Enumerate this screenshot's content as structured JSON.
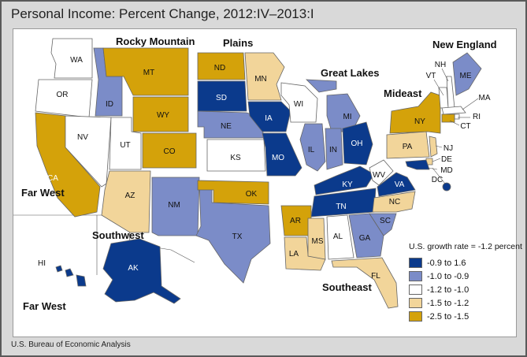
{
  "title": "Personal Income: Percent Change, 2012:IV–2013:I",
  "source": "U.S. Bureau of Economic Analysis",
  "legend": {
    "title": "U.S. growth rate = -1.2 percent",
    "classes": [
      {
        "label": "-0.9 to 1.6",
        "color": "#0b3a8c"
      },
      {
        "label": "-1.0 to -0.9",
        "color": "#7b8cc8"
      },
      {
        "label": "-1.2 to -1.0",
        "color": "#ffffff"
      },
      {
        "label": "-1.5 to -1.2",
        "color": "#f2d59a"
      },
      {
        "label": "-2.5 to -1.5",
        "color": "#d4a20a"
      }
    ]
  },
  "regions": {
    "rocky_mountain": "Rocky Mountain",
    "plains": "Plains",
    "great_lakes": "Great Lakes",
    "new_england": "New England",
    "mideast": "Mideast",
    "far_west": "Far West",
    "far_west_2": "Far West",
    "southwest": "Southwest",
    "southeast": "Southeast"
  },
  "states": {
    "WA": {
      "label": "WA",
      "class": 2
    },
    "OR": {
      "label": "OR",
      "class": 2
    },
    "CA": {
      "label": "CA",
      "class": 4
    },
    "NV": {
      "label": "NV",
      "class": 2
    },
    "ID": {
      "label": "ID",
      "class": 1
    },
    "MT": {
      "label": "MT",
      "class": 4
    },
    "WY": {
      "label": "WY",
      "class": 4
    },
    "UT": {
      "label": "UT",
      "class": 2
    },
    "CO": {
      "label": "CO",
      "class": 4
    },
    "AZ": {
      "label": "AZ",
      "class": 3
    },
    "NM": {
      "label": "NM",
      "class": 1
    },
    "TX": {
      "label": "TX",
      "class": 1
    },
    "OK": {
      "label": "OK",
      "class": 4
    },
    "KS": {
      "label": "KS",
      "class": 2
    },
    "NE": {
      "label": "NE",
      "class": 1
    },
    "SD": {
      "label": "SD",
      "class": 0
    },
    "ND": {
      "label": "ND",
      "class": 4
    },
    "MN": {
      "label": "MN",
      "class": 3
    },
    "IA": {
      "label": "IA",
      "class": 0
    },
    "MO": {
      "label": "MO",
      "class": 0
    },
    "AR": {
      "label": "AR",
      "class": 4
    },
    "LA": {
      "label": "LA",
      "class": 3
    },
    "WI": {
      "label": "WI",
      "class": 2
    },
    "IL": {
      "label": "IL",
      "class": 1
    },
    "MI": {
      "label": "MI",
      "class": 1
    },
    "IN": {
      "label": "IN",
      "class": 1
    },
    "OH": {
      "label": "OH",
      "class": 0
    },
    "KY": {
      "label": "KY",
      "class": 0
    },
    "TN": {
      "label": "TN",
      "class": 0
    },
    "MS": {
      "label": "MS",
      "class": 3
    },
    "AL": {
      "label": "AL",
      "class": 2
    },
    "GA": {
      "label": "GA",
      "class": 1
    },
    "FL": {
      "label": "FL",
      "class": 3
    },
    "SC": {
      "label": "SC",
      "class": 1
    },
    "NC": {
      "label": "NC",
      "class": 3
    },
    "VA": {
      "label": "VA",
      "class": 0
    },
    "WV": {
      "label": "WV",
      "class": 2
    },
    "PA": {
      "label": "PA",
      "class": 3
    },
    "NY": {
      "label": "NY",
      "class": 4
    },
    "NJ": {
      "label": "NJ",
      "class": 3
    },
    "DE": {
      "label": "DE",
      "class": 3
    },
    "MD": {
      "label": "MD",
      "class": 0
    },
    "DC": {
      "label": "DC",
      "class": 0
    },
    "VT": {
      "label": "VT",
      "class": 2
    },
    "NH": {
      "label": "NH",
      "class": 2
    },
    "ME": {
      "label": "ME",
      "class": 1
    },
    "MA": {
      "label": "MA",
      "class": 2
    },
    "RI": {
      "label": "RI",
      "class": 2
    },
    "CT": {
      "label": "CT",
      "class": 4
    },
    "AK": {
      "label": "AK",
      "class": 0
    },
    "HI": {
      "label": "HI",
      "class": 0
    }
  }
}
